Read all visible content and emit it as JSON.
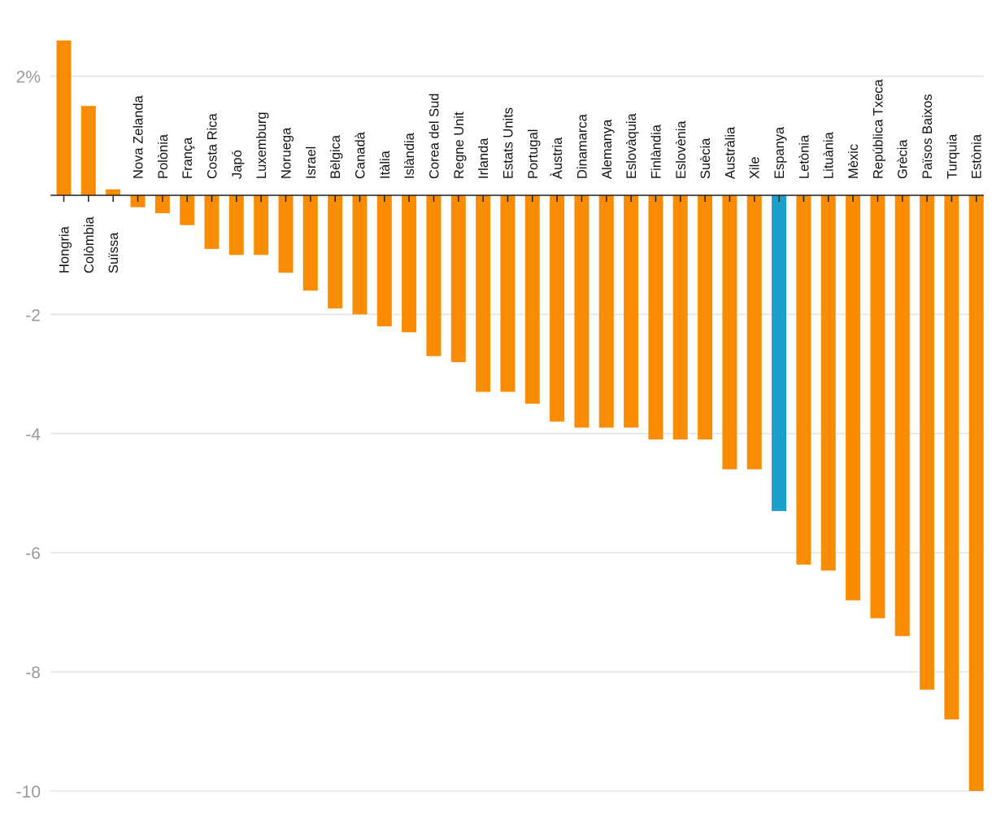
{
  "chart_data": {
    "type": "bar",
    "title": "",
    "xlabel": "",
    "ylabel": "",
    "ylim": [
      -10,
      2.6
    ],
    "yticks": [
      2,
      0,
      -2,
      -4,
      -6,
      -8,
      -10
    ],
    "ytick_labels": [
      "2%",
      "",
      "-2",
      "-4",
      "-6",
      "-8",
      "-10"
    ],
    "grid": true,
    "default_color": "#f98c00",
    "highlight_color": "#1b9ec9",
    "highlight_category": "Espanya",
    "categories": [
      "Hongria",
      "Colòmbia",
      "Suïssa",
      "Nova Zelanda",
      "Polònia",
      "França",
      "Costa Rica",
      "Japó",
      "Luxemburg",
      "Noruega",
      "Israel",
      "Bèlgica",
      "Canadà",
      "Itàlia",
      "Islàndia",
      "Corea del Sud",
      "Regne Unit",
      "Irlanda",
      "Estats Units",
      "Portugal",
      "Àustria",
      "Dinamarca",
      "Alemanya",
      "Eslovàquia",
      "Finlàndia",
      "Eslovènia",
      "Suècia",
      "Austràlia",
      "Xile",
      "Espanya",
      "Letònia",
      "Lituània",
      "Mèxic",
      "República Txeca",
      "Grècia",
      "Països Baixos",
      "Turquia",
      "Estònia"
    ],
    "values": [
      2.6,
      1.5,
      0.1,
      -0.2,
      -0.3,
      -0.5,
      -0.9,
      -1.0,
      -1.0,
      -1.3,
      -1.6,
      -1.9,
      -2.0,
      -2.2,
      -2.3,
      -2.7,
      -2.8,
      -3.3,
      -3.3,
      -3.5,
      -3.8,
      -3.9,
      -3.9,
      -3.9,
      -4.1,
      -4.1,
      -4.1,
      -4.6,
      -4.6,
      -5.3,
      -6.2,
      -6.3,
      -6.8,
      -7.1,
      -7.4,
      -8.3,
      -8.8,
      -10.0
    ]
  }
}
